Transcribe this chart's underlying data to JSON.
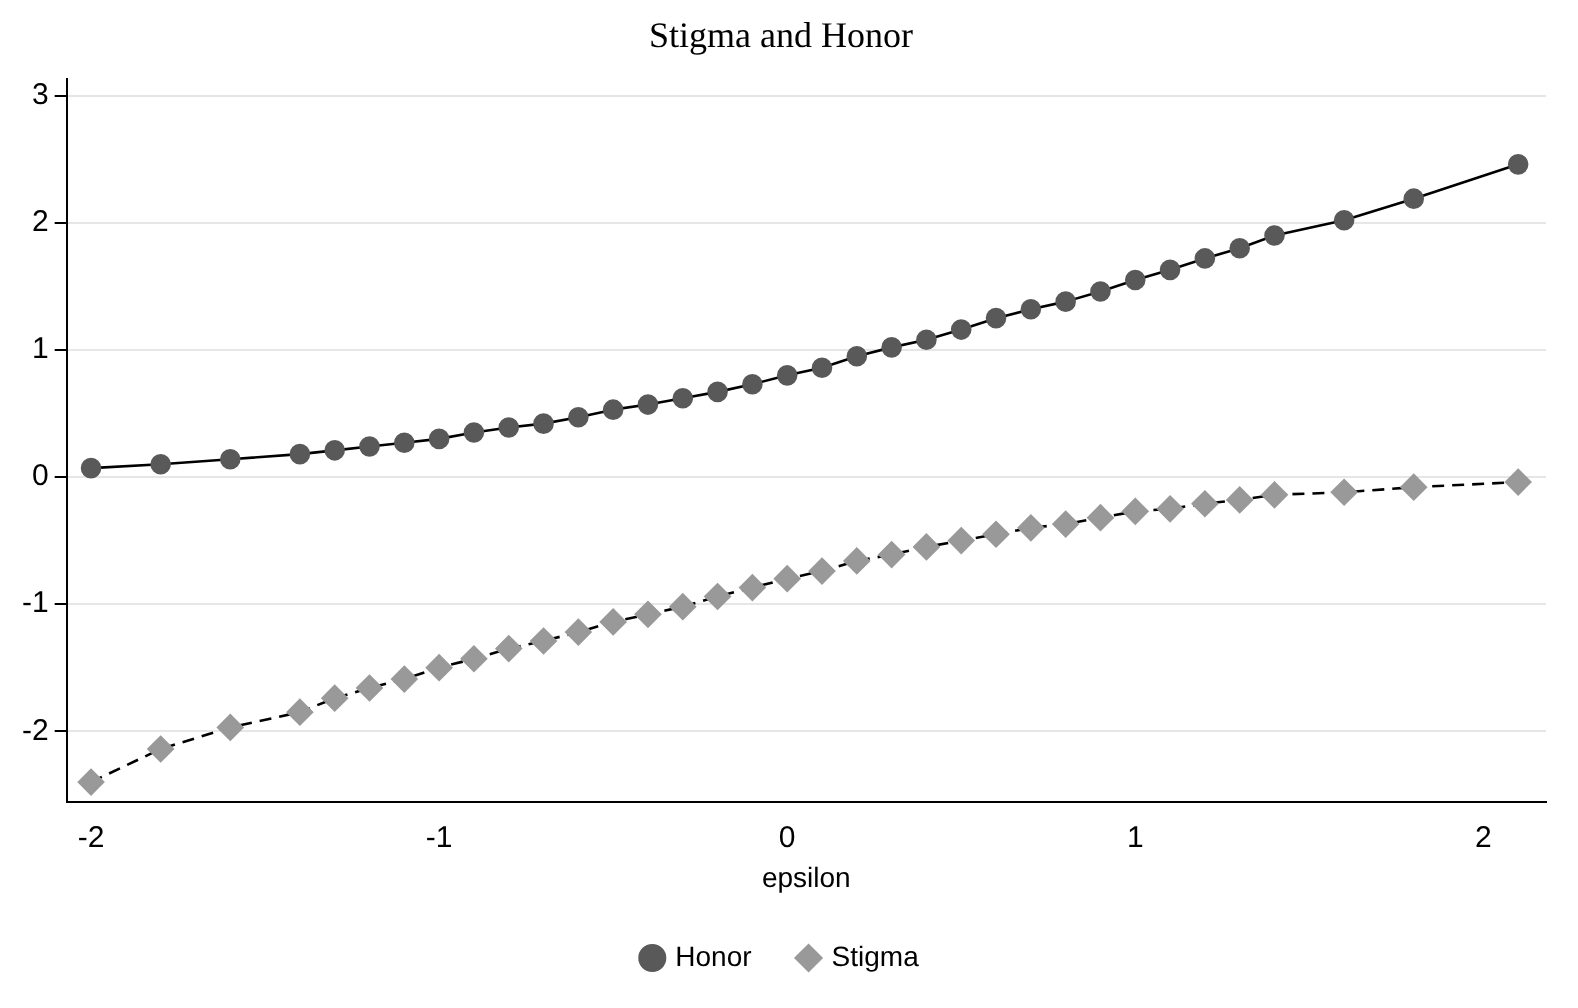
{
  "chart_data": {
    "type": "line",
    "title": "Stigma and Honor",
    "xlabel": "epsilon",
    "x": [
      -2,
      -1.8,
      -1.6,
      -1.4,
      -1.3,
      -1.2,
      -1.1,
      -1.0,
      -0.9,
      -0.8,
      -0.7,
      -0.6,
      -0.5,
      -0.4,
      -0.3,
      -0.2,
      -0.1,
      0,
      0.1,
      0.2,
      0.3,
      0.4,
      0.5,
      0.6,
      0.7,
      0.8,
      0.9,
      1.0,
      1.1,
      1.2,
      1.3,
      1.4,
      1.6,
      1.8,
      2.1
    ],
    "series": [
      {
        "name": "Honor",
        "color": "#595959",
        "marker": "circle",
        "line_style": "solid",
        "values": [
          0.07,
          0.1,
          0.14,
          0.18,
          0.21,
          0.24,
          0.27,
          0.3,
          0.35,
          0.39,
          0.42,
          0.47,
          0.53,
          0.57,
          0.62,
          0.67,
          0.73,
          0.8,
          0.86,
          0.95,
          1.02,
          1.08,
          1.16,
          1.25,
          1.32,
          1.38,
          1.46,
          1.55,
          1.63,
          1.72,
          1.8,
          1.9,
          2.02,
          2.19,
          2.46
        ]
      },
      {
        "name": "Stigma",
        "color": "#999999",
        "marker": "diamond",
        "line_style": "dashed",
        "values": [
          -2.4,
          -2.14,
          -1.97,
          -1.85,
          -1.74,
          -1.66,
          -1.59,
          -1.5,
          -1.43,
          -1.35,
          -1.29,
          -1.22,
          -1.14,
          -1.08,
          -1.02,
          -0.94,
          -0.87,
          -0.8,
          -0.74,
          -0.66,
          -0.61,
          -0.55,
          -0.5,
          -0.45,
          -0.4,
          -0.37,
          -0.32,
          -0.27,
          -0.25,
          -0.21,
          -0.18,
          -0.14,
          -0.12,
          -0.08,
          -0.04
        ]
      }
    ],
    "xlim": [
      -2.07,
      2.18
    ],
    "xticks": [
      -2,
      -1,
      0,
      1,
      2
    ],
    "ylim": [
      -2.56,
      3.13
    ],
    "yticks": [
      -2,
      -1,
      0,
      1,
      2,
      3
    ],
    "grid": "y",
    "legend": "bottom"
  }
}
